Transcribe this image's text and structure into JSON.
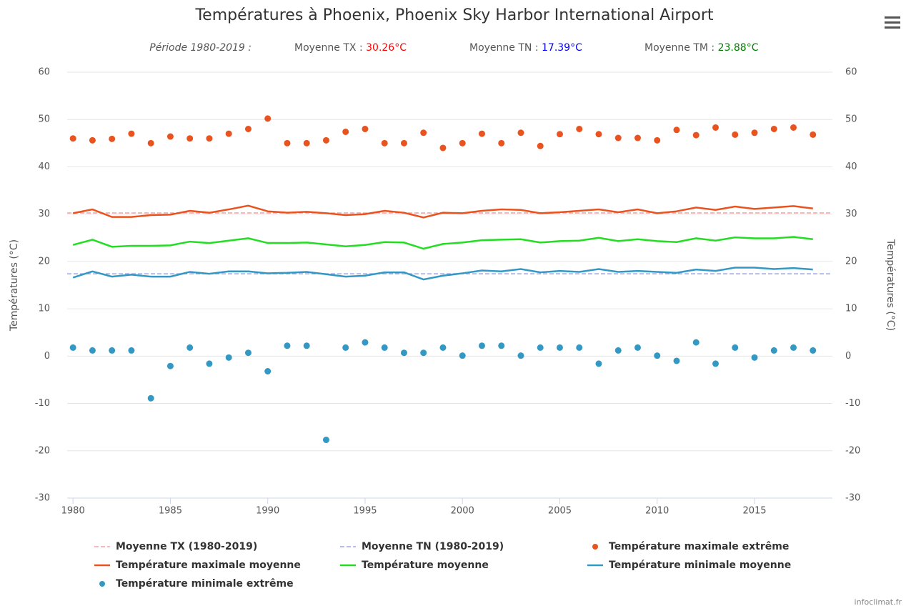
{
  "chart_data": {
    "type": "line",
    "title": "Températures à Phoenix, Phoenix Sky Harbor International Airport",
    "period": "Période 1980-2019 :",
    "stats": [
      {
        "label": "Moyenne TX :",
        "value": 30.26,
        "value_label": "30.26°C",
        "color": "#ff0000",
        "line": {
          "name": "Moyenne TX (1980-2019)",
          "color": "#f4a0a0"
        }
      },
      {
        "label": "Moyenne TN :",
        "value": 17.39,
        "value_label": "17.39°C",
        "color": "#0000ff",
        "line": {
          "name": "Moyenne TN (1980-2019)",
          "color": "#9aa4f0"
        }
      },
      {
        "label": "Moyenne TM :",
        "value": 23.88,
        "value_label": "23.88°C",
        "color": "#008000"
      }
    ],
    "ylabel": "Températures (°C)",
    "y2label": "Températures (°C)",
    "x": [
      1980,
      1981,
      1982,
      1983,
      1984,
      1985,
      1986,
      1987,
      1988,
      1989,
      1990,
      1991,
      1992,
      1993,
      1994,
      1995,
      1996,
      1997,
      1998,
      1999,
      2000,
      2001,
      2002,
      2003,
      2004,
      2005,
      2006,
      2007,
      2008,
      2009,
      2010,
      2011,
      2012,
      2013,
      2014,
      2015,
      2016,
      2017,
      2018
    ],
    "xlim": [
      1979.7,
      2019
    ],
    "xticks": [
      1980,
      1985,
      1990,
      1995,
      2000,
      2005,
      2010,
      2015
    ],
    "ylim": [
      -30,
      60
    ],
    "yticks": [
      -30,
      -20,
      -10,
      0,
      10,
      20,
      30,
      40,
      50,
      60
    ],
    "y2lim": [
      -30,
      60
    ],
    "y2ticks": [
      -30,
      -20,
      -10,
      0,
      10,
      20,
      30,
      40,
      50,
      60
    ],
    "grid": true,
    "series": [
      {
        "name": "Température maximale extrême",
        "kind": "scatter",
        "color": "#e8531f",
        "values": [
          46,
          45.6,
          45.9,
          47,
          45,
          46.4,
          46,
          46,
          47,
          48,
          50.2,
          45,
          45,
          45.6,
          47.4,
          48,
          45,
          45,
          47.2,
          44,
          45,
          47,
          45,
          47.2,
          44.4,
          46.9,
          48,
          46.9,
          46.1,
          46.1,
          45.6,
          47.8,
          46.7,
          48.3,
          46.8,
          47.2,
          48,
          48.3,
          46.8
        ]
      },
      {
        "name": "Température maximale moyenne",
        "kind": "line",
        "color": "#e8531f",
        "values": [
          30.2,
          31,
          29.4,
          29.4,
          29.8,
          29.9,
          30.7,
          30.3,
          31,
          31.8,
          30.6,
          30.3,
          30.5,
          30.2,
          29.8,
          30,
          30.7,
          30.3,
          29.3,
          30.3,
          30.2,
          30.7,
          31,
          30.9,
          30.2,
          30.4,
          30.7,
          31,
          30.4,
          31,
          30.2,
          30.6,
          31.4,
          30.9,
          31.6,
          31.1,
          31.4,
          31.7,
          31.2
        ]
      },
      {
        "name": "Température moyenne",
        "kind": "line",
        "color": "#22dd22",
        "values": [
          23.5,
          24.6,
          23.1,
          23.3,
          23.3,
          23.4,
          24.2,
          23.9,
          24.4,
          24.9,
          23.9,
          23.9,
          24,
          23.6,
          23.2,
          23.5,
          24.1,
          24,
          22.7,
          23.7,
          24,
          24.5,
          24.6,
          24.7,
          24,
          24.3,
          24.4,
          25,
          24.3,
          24.7,
          24.3,
          24.1,
          24.9,
          24.4,
          25.1,
          24.9,
          24.9,
          25.2,
          24.7
        ]
      },
      {
        "name": "Température minimale moyenne",
        "kind": "line",
        "color": "#3399c4",
        "values": [
          16.6,
          17.9,
          16.8,
          17.2,
          16.8,
          16.8,
          17.8,
          17.4,
          17.9,
          17.9,
          17.5,
          17.6,
          17.8,
          17.3,
          16.8,
          17,
          17.7,
          17.7,
          16.2,
          17,
          17.5,
          18.1,
          17.9,
          18.4,
          17.7,
          18,
          17.8,
          18.4,
          17.8,
          18,
          17.8,
          17.6,
          18.3,
          18,
          18.7,
          18.7,
          18.4,
          18.6,
          18.3
        ]
      },
      {
        "name": "Température minimale extrême",
        "kind": "scatter",
        "color": "#3399c4",
        "values": [
          1.8,
          1.2,
          1.2,
          1.2,
          -8.9,
          -2.1,
          1.8,
          -1.6,
          -0.3,
          0.7,
          -3.2,
          2.2,
          2.2,
          -17.7,
          1.8,
          2.9,
          1.8,
          0.7,
          0.7,
          1.8,
          0.1,
          2.2,
          2.2,
          0.1,
          1.8,
          1.8,
          1.8,
          -1.6,
          1.2,
          1.8,
          0.1,
          -1,
          2.9,
          -1.6,
          1.8,
          -0.3,
          1.2,
          1.8,
          1.2
        ]
      }
    ],
    "credit": "infoclimat.fr"
  }
}
